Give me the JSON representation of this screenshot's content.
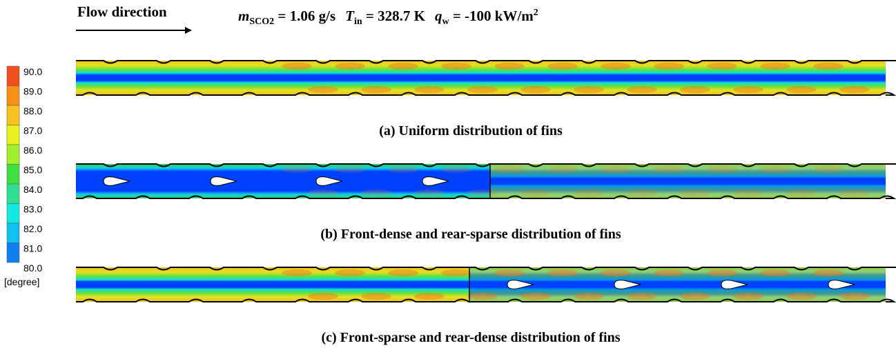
{
  "header": {
    "flow_label": "Flow direction",
    "conditions": [
      {
        "symbol": "m",
        "subscript": "SCO2",
        "text": " = 1.06 g/s"
      },
      {
        "symbol": "T",
        "subscript": "in",
        "text": " = 328.7 K"
      },
      {
        "symbol": "q",
        "subscript": "w",
        "text": " = -100 kW/m",
        "superscript": "2"
      }
    ]
  },
  "colorbar": {
    "labels": [
      "90.0",
      "89.0",
      "88.0",
      "87.0",
      "86.0",
      "85.0",
      "84.0",
      "83.0",
      "82.0",
      "81.0",
      "80.0"
    ],
    "unit": "[degree]"
  },
  "panels": [
    {
      "caption": "(a) Uniform distribution of fins"
    },
    {
      "caption": "(b) Front-dense and rear-sparse distribution of fins"
    },
    {
      "caption": "(c) Front-sparse and rear-dense distribution of fins"
    }
  ]
}
